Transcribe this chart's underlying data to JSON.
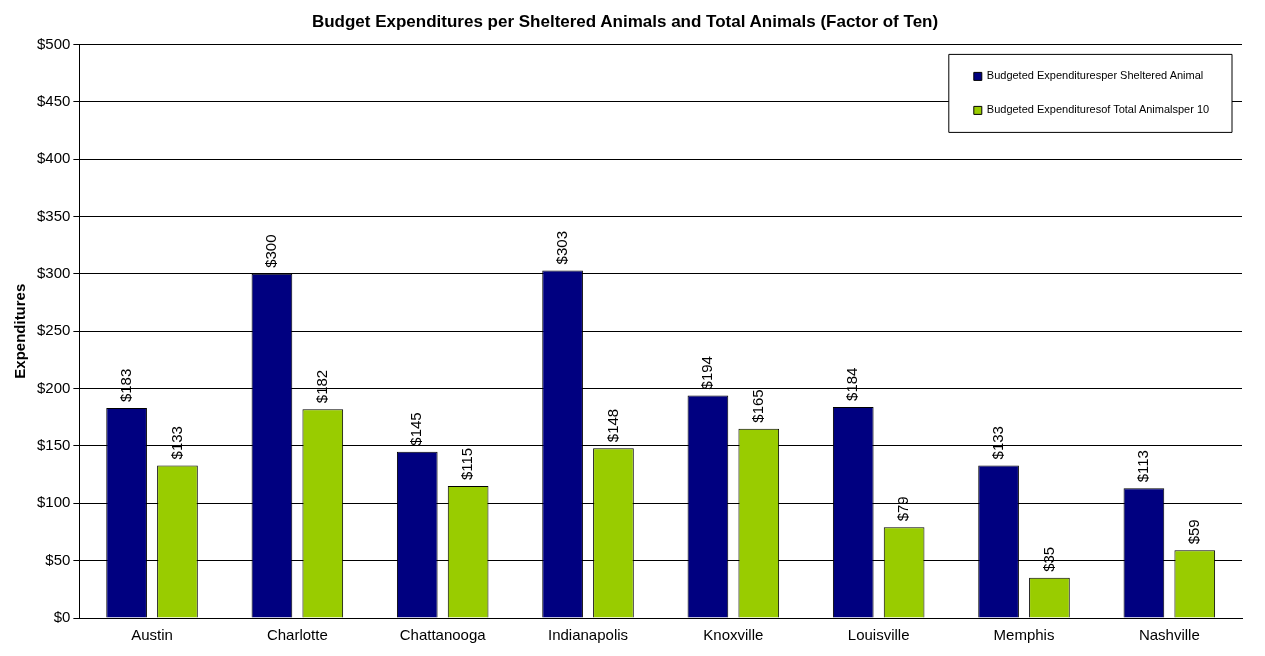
{
  "chart_data": {
    "type": "bar",
    "title": "Budget Expenditures per Sheltered Animals and Total Animals (Factor of Ten)",
    "ylabel": "Expenditures",
    "categories": [
      "Austin",
      "Charlotte",
      "Chattanooga",
      "Indianapolis",
      "Knoxville",
      "Louisville",
      "Memphis",
      "Nashville"
    ],
    "series": [
      {
        "name": "Budgeted Expendituresper Sheltered Animal",
        "color": "#000080",
        "values": [
          183,
          300,
          145,
          303,
          194,
          184,
          133,
          113
        ],
        "value_labels": [
          "$183",
          "$300",
          "$145",
          "$303",
          "$194",
          "$184",
          "$133",
          "$113"
        ]
      },
      {
        "name": "Budgeted Expendituresof Total Animalsper 10",
        "color": "#99cc00",
        "values": [
          133,
          182,
          115,
          148,
          165,
          79,
          35,
          59
        ],
        "value_labels": [
          "$133",
          "$182",
          "$115",
          "$148",
          "$165",
          "$79",
          "$35",
          "$59"
        ]
      }
    ],
    "ylim": [
      0,
      500
    ],
    "yticks": [
      {
        "value": 0,
        "label": "$0"
      },
      {
        "value": 50,
        "label": "$50"
      },
      {
        "value": 100,
        "label": "$100"
      },
      {
        "value": 150,
        "label": "$150"
      },
      {
        "value": 200,
        "label": "$200"
      },
      {
        "value": 250,
        "label": "$250"
      },
      {
        "value": 300,
        "label": "$300"
      },
      {
        "value": 350,
        "label": "$350"
      },
      {
        "value": 400,
        "label": "$400"
      },
      {
        "value": 450,
        "label": "$450"
      },
      {
        "value": 500,
        "label": "$500"
      }
    ],
    "grid": "y",
    "legend": "top right"
  }
}
